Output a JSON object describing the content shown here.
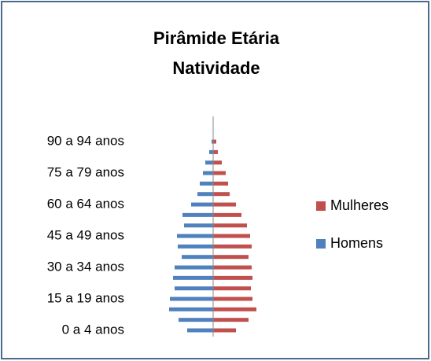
{
  "chart_data": {
    "type": "pyramid",
    "title": "Pirâmide Etária",
    "subtitle": "Natividade",
    "categories": [
      "0 a 4 anos",
      null,
      null,
      "15 a 19 anos",
      null,
      null,
      "30 a 34 anos",
      null,
      null,
      "45 a 49 anos",
      null,
      null,
      "60 a 64 anos",
      null,
      null,
      "75 a 79 anos",
      null,
      null,
      "90 a 94 anos"
    ],
    "series": [
      {
        "name": "Mulheres",
        "color": "#c0504d",
        "values": [
          29,
          45,
          55,
          50,
          48,
          50,
          49,
          45,
          49,
          47,
          43,
          36,
          29,
          21,
          19,
          16,
          11,
          6,
          4
        ]
      },
      {
        "name": "Homens",
        "color": "#4f81bd",
        "values": [
          33,
          44,
          56,
          55,
          49,
          51,
          49,
          40,
          45,
          46,
          37,
          39,
          28,
          20,
          17,
          13,
          10,
          5,
          2
        ]
      }
    ],
    "legend": "right"
  }
}
